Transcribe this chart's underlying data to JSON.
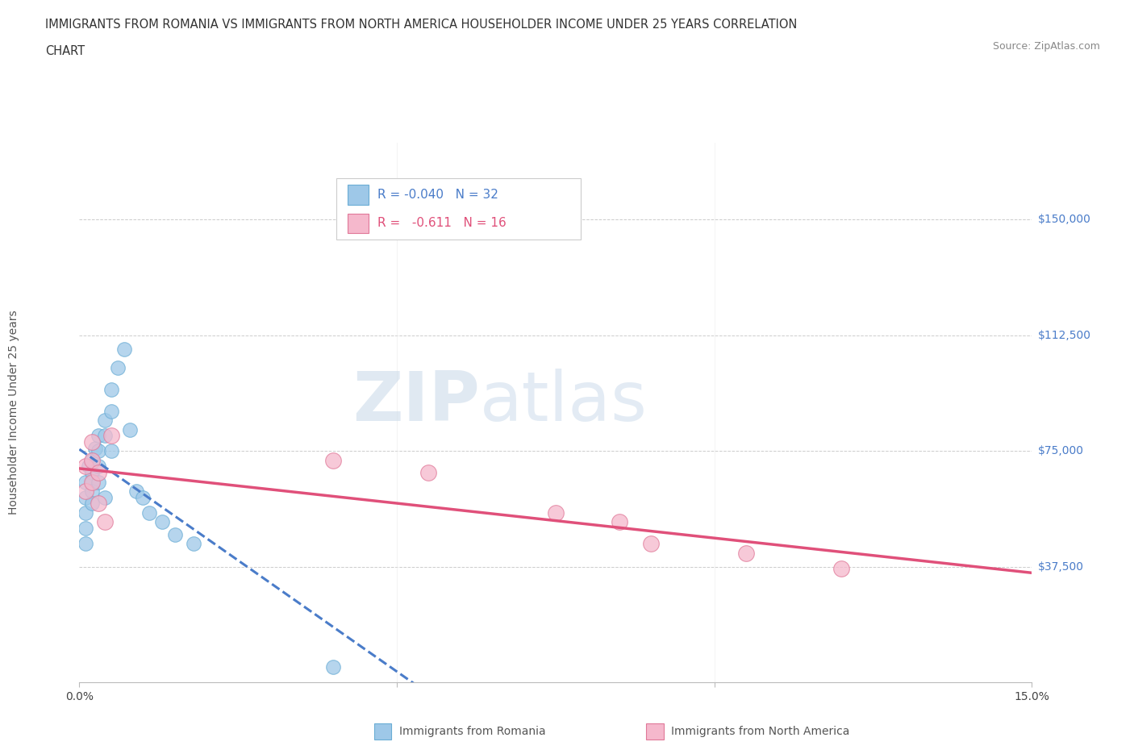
{
  "title_line1": "IMMIGRANTS FROM ROMANIA VS IMMIGRANTS FROM NORTH AMERICA HOUSEHOLDER INCOME UNDER 25 YEARS CORRELATION",
  "title_line2": "CHART",
  "source_text": "Source: ZipAtlas.com",
  "ylabel": "Householder Income Under 25 years",
  "xlim": [
    0.0,
    0.15
  ],
  "ylim": [
    0,
    175000
  ],
  "ytick_vals": [
    37500,
    75000,
    112500,
    150000
  ],
  "ytick_labels": [
    "$37,500",
    "$75,000",
    "$112,500",
    "$150,000"
  ],
  "xtick_vals": [
    0.0,
    0.05,
    0.1,
    0.15
  ],
  "xtick_labels": [
    "0.0%",
    "",
    "",
    "15.0%"
  ],
  "watermark_zip": "ZIP",
  "watermark_atlas": "atlas",
  "romania_fill": "#9ec8e8",
  "romania_edge": "#6aadd5",
  "north_america_fill": "#f5b8cc",
  "north_america_edge": "#e07898",
  "trend_romania_color": "#4a7cc9",
  "trend_north_america_color": "#e0507a",
  "grid_color": "#cccccc",
  "background_color": "#ffffff",
  "r_romania": "-0.040",
  "n_romania": "32",
  "r_na": "-0.611",
  "n_na": "16",
  "romania_x": [
    0.001,
    0.001,
    0.001,
    0.001,
    0.001,
    0.0015,
    0.002,
    0.002,
    0.002,
    0.002,
    0.002,
    0.0025,
    0.003,
    0.003,
    0.003,
    0.003,
    0.004,
    0.004,
    0.004,
    0.005,
    0.005,
    0.005,
    0.006,
    0.007,
    0.008,
    0.009,
    0.01,
    0.011,
    0.013,
    0.015,
    0.018,
    0.04
  ],
  "romania_y": [
    65000,
    60000,
    55000,
    50000,
    45000,
    70000,
    72000,
    68000,
    65000,
    62000,
    58000,
    76000,
    80000,
    75000,
    70000,
    65000,
    85000,
    80000,
    60000,
    95000,
    88000,
    75000,
    102000,
    108000,
    82000,
    62000,
    60000,
    55000,
    52000,
    48000,
    45000,
    5000
  ],
  "north_america_x": [
    0.001,
    0.001,
    0.002,
    0.002,
    0.002,
    0.003,
    0.003,
    0.004,
    0.005,
    0.04,
    0.055,
    0.075,
    0.085,
    0.09,
    0.105,
    0.12
  ],
  "north_america_y": [
    70000,
    62000,
    78000,
    72000,
    65000,
    68000,
    58000,
    52000,
    80000,
    72000,
    68000,
    55000,
    52000,
    45000,
    42000,
    37000
  ],
  "romania_size": 160,
  "north_america_size": 200
}
